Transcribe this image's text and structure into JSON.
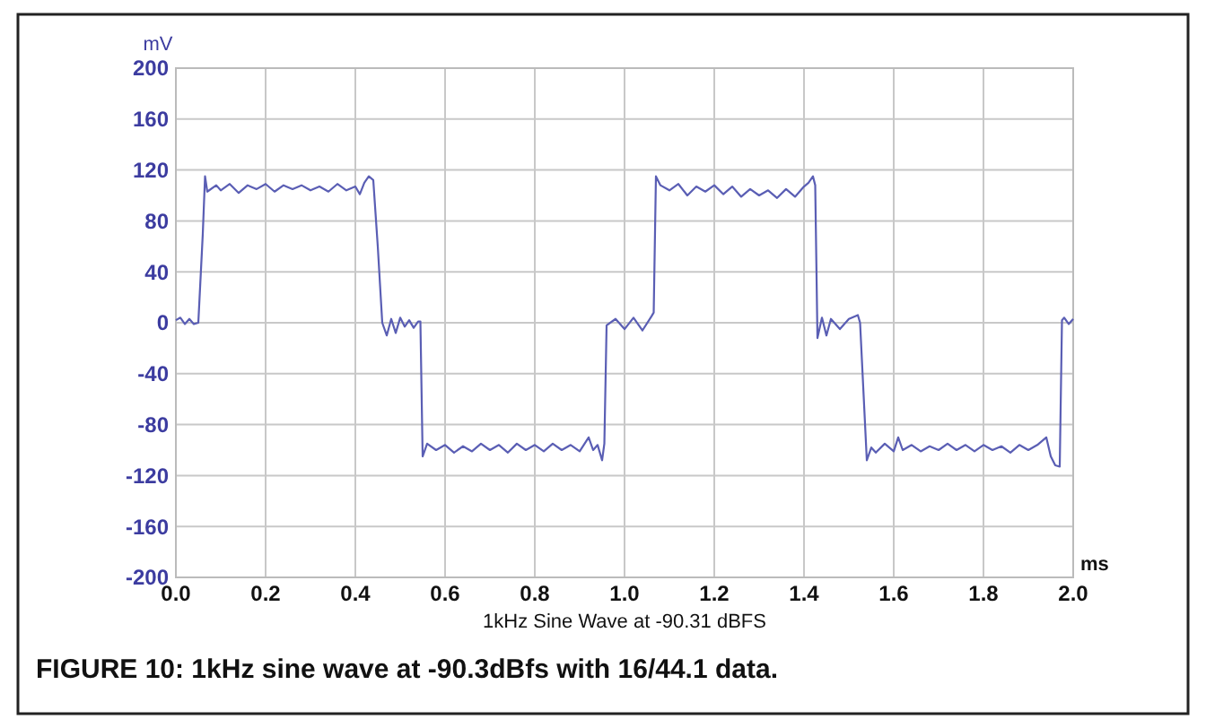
{
  "chart_data": {
    "type": "line",
    "title": "FIGURE 10: 1kHz sine wave at -90.3dBfs with 16/44.1 data.",
    "xlabel": "ms",
    "ylabel": "mV",
    "annotations": [
      "1kHz Sine Wave at -90.31 dBFS"
    ],
    "xlim": [
      0,
      2
    ],
    "ylim": [
      -200,
      200
    ],
    "xticks": [
      {
        "value": 0,
        "label": "0.0"
      },
      0.2,
      0.4,
      0.6,
      0.8,
      {
        "value": 1,
        "label": "1.0"
      },
      1.2,
      1.4,
      1.6,
      1.8,
      {
        "value": 2,
        "label": "2.0"
      }
    ],
    "yticks": [
      -200,
      -160,
      -120,
      -80,
      -40,
      0,
      40,
      80,
      120,
      160,
      200
    ],
    "grid": true,
    "marker": "none",
    "line_style": "solid",
    "x": [
      0,
      0.01,
      0.02,
      0.03,
      0.04,
      0.05,
      0.06,
      0.065,
      0.07,
      0.09,
      0.1,
      0.12,
      0.14,
      0.16,
      0.18,
      0.2,
      0.22,
      0.24,
      0.26,
      0.28,
      0.3,
      0.32,
      0.34,
      0.36,
      0.38,
      0.4,
      0.41,
      0.42,
      0.43,
      0.44,
      0.45,
      0.46,
      0.47,
      0.48,
      0.49,
      0.5,
      0.51,
      0.52,
      0.53,
      0.54,
      0.545,
      0.55,
      0.56,
      0.58,
      0.6,
      0.62,
      0.64,
      0.66,
      0.68,
      0.7,
      0.72,
      0.74,
      0.76,
      0.78,
      0.8,
      0.82,
      0.84,
      0.86,
      0.88,
      0.9,
      0.92,
      0.93,
      0.94,
      0.95,
      0.955,
      0.96,
      0.98,
      1.0,
      1.02,
      1.04,
      1.06,
      1.065,
      1.07,
      1.08,
      1.1,
      1.12,
      1.14,
      1.16,
      1.18,
      1.2,
      1.22,
      1.24,
      1.26,
      1.28,
      1.3,
      1.32,
      1.34,
      1.36,
      1.38,
      1.4,
      1.41,
      1.42,
      1.425,
      1.43,
      1.44,
      1.45,
      1.46,
      1.48,
      1.5,
      1.52,
      1.525,
      1.54,
      1.55,
      1.56,
      1.58,
      1.6,
      1.61,
      1.62,
      1.64,
      1.66,
      1.68,
      1.7,
      1.72,
      1.74,
      1.76,
      1.78,
      1.8,
      1.82,
      1.84,
      1.86,
      1.88,
      1.9,
      1.92,
      1.94,
      1.95,
      1.96,
      1.97,
      1.975,
      1.98,
      1.99,
      2.0
    ],
    "series": [
      {
        "color": "#5a5eb4",
        "values": [
          2,
          4,
          -1,
          3,
          -1,
          0,
          70,
          115,
          103,
          108,
          104,
          109,
          102,
          108,
          105,
          109,
          103,
          108,
          105,
          108,
          104,
          107,
          103,
          109,
          104,
          107,
          101,
          110,
          115,
          112,
          60,
          0,
          -10,
          3,
          -8,
          4,
          -3,
          2,
          -4,
          1,
          1,
          -105,
          -95,
          -100,
          -96,
          -102,
          -97,
          -101,
          -95,
          -100,
          -96,
          -102,
          -95,
          -100,
          -96,
          -101,
          -95,
          -100,
          -96,
          -101,
          -90,
          -100,
          -96,
          -108,
          -95,
          -2,
          3,
          -5,
          4,
          -6,
          5,
          8,
          115,
          108,
          104,
          109,
          100,
          107,
          103,
          108,
          101,
          107,
          99,
          105,
          100,
          104,
          98,
          105,
          99,
          107,
          110,
          115,
          108,
          -12,
          4,
          -10,
          3,
          -5,
          3,
          6,
          0,
          -108,
          -98,
          -102,
          -95,
          -101,
          -90,
          -100,
          -96,
          -101,
          -97,
          -100,
          -95,
          -100,
          -96,
          -101,
          -96,
          -100,
          -97,
          -102,
          -96,
          -100,
          -96,
          -90,
          -105,
          -112,
          -113,
          2,
          4,
          -1,
          3
        ]
      }
    ]
  }
}
